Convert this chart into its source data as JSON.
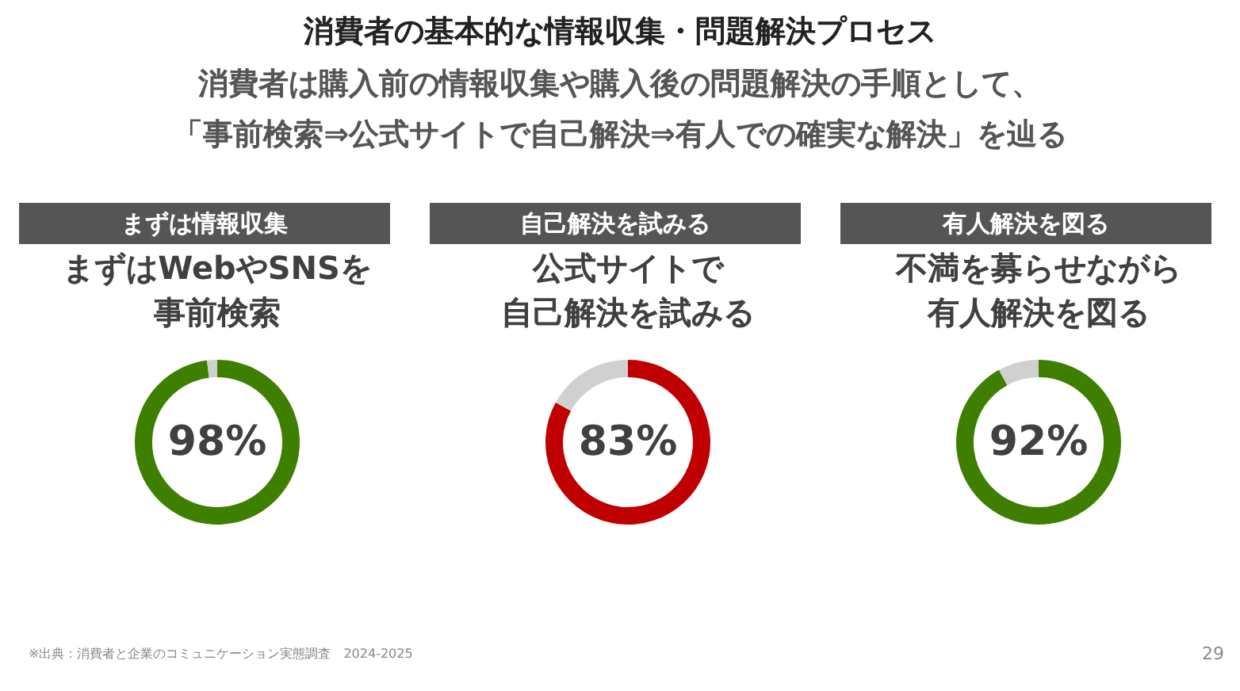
{
  "chart_data": [
    {
      "type": "other",
      "title": "消費者の基本的な情報収集・問題解決プロセス",
      "subtitle": "消費者は購入前の情報収集や購入後の問題解決の手順として、「事前検索⇒公式サイトで自己解決⇒有人での確実な解決」を辿る",
      "annotations": [
        "※出典：消費者と企業のコミュニケーション実態調査　2024-2025",
        "29"
      ]
    },
    {
      "type": "donut",
      "title": "まずは情報収集",
      "subtitle": "まずはWebやSNSを事前検索",
      "categories": [
        null,
        null
      ],
      "values": [
        98,
        2
      ],
      "colors": [
        "#3f7f00",
        "#d0d0d0"
      ],
      "value_labels": [
        "98%",
        null
      ]
    },
    {
      "type": "donut",
      "title": "自己解決を試みる",
      "subtitle": "公式サイトで自己解決を試みる",
      "categories": [
        null,
        null
      ],
      "values": [
        83,
        17
      ],
      "colors": [
        "#c00000",
        "#d0d0d0"
      ],
      "value_labels": [
        "83%",
        null
      ]
    },
    {
      "type": "donut",
      "title": "有人解決を図る",
      "subtitle": "不満を募らせながら有人解決を図る",
      "categories": [
        null,
        null
      ],
      "values": [
        92,
        8
      ],
      "colors": [
        "#3f7f00",
        "#d0d0d0"
      ],
      "value_labels": [
        "92%",
        null
      ]
    }
  ]
}
